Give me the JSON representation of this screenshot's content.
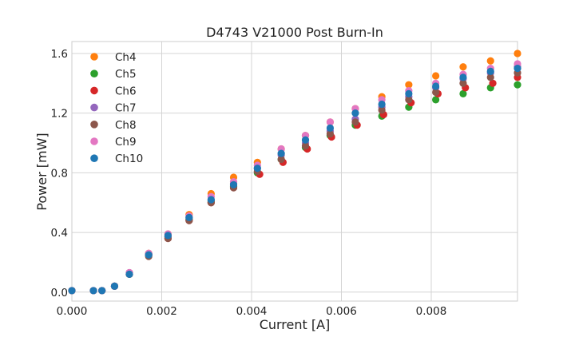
{
  "chart_data": {
    "type": "scatter",
    "title": "D4743 V21000 Post Burn-In",
    "xlabel": "Current [A]",
    "ylabel": "Power [mW]",
    "xlim": [
      0,
      0.00992
    ],
    "ylim": [
      -0.06,
      1.68
    ],
    "x_ticks": [
      0,
      0.002,
      0.004,
      0.006,
      0.008
    ],
    "x_tick_labels": [
      "0.000",
      "0.002",
      "0.004",
      "0.006",
      "0.008"
    ],
    "y_ticks": [
      0.0,
      0.4,
      0.8,
      1.2,
      1.6
    ],
    "y_tick_labels": [
      "0.0",
      "0.4",
      "0.8",
      "1.2",
      "1.6"
    ],
    "grid": true,
    "legend_position": "top-left",
    "series": [
      {
        "name": "Ch4",
        "color": "#ff7f0e",
        "x": [
          0,
          0.00048,
          0.00067,
          0.00095,
          0.00128,
          0.00171,
          0.00214,
          0.00261,
          0.0031,
          0.0036,
          0.00413,
          0.00466,
          0.0052,
          0.00575,
          0.00631,
          0.0069,
          0.0075,
          0.0081,
          0.00871,
          0.00932,
          0.00992
        ],
        "y": [
          0.01,
          0.01,
          0.01,
          0.04,
          0.13,
          0.26,
          0.39,
          0.52,
          0.66,
          0.77,
          0.87,
          0.96,
          1.05,
          1.14,
          1.23,
          1.31,
          1.39,
          1.45,
          1.51,
          1.55,
          1.6
        ]
      },
      {
        "name": "Ch5",
        "color": "#2ca02c",
        "x": [
          0,
          0.00048,
          0.00067,
          0.00095,
          0.00128,
          0.00171,
          0.00214,
          0.00261,
          0.0031,
          0.0036,
          0.00413,
          0.00466,
          0.0052,
          0.00575,
          0.00631,
          0.0069,
          0.0075,
          0.0081,
          0.00871,
          0.00932,
          0.00992
        ],
        "y": [
          0.01,
          0.01,
          0.01,
          0.04,
          0.12,
          0.25,
          0.37,
          0.49,
          0.61,
          0.71,
          0.8,
          0.89,
          0.97,
          1.05,
          1.12,
          1.18,
          1.24,
          1.29,
          1.33,
          1.37,
          1.39
        ]
      },
      {
        "name": "Ch6",
        "color": "#d62728",
        "x": [
          0,
          0.00048,
          0.00067,
          0.00095,
          0.00128,
          0.00171,
          0.00214,
          0.00261,
          0.0031,
          0.0036,
          0.00418,
          0.0047,
          0.00524,
          0.00578,
          0.00635,
          0.00694,
          0.00755,
          0.00815,
          0.00876,
          0.00937,
          0.00992
        ],
        "y": [
          0.01,
          0.01,
          0.01,
          0.04,
          0.12,
          0.25,
          0.36,
          0.48,
          0.6,
          0.7,
          0.79,
          0.87,
          0.96,
          1.04,
          1.12,
          1.19,
          1.27,
          1.33,
          1.37,
          1.4,
          1.44
        ]
      },
      {
        "name": "Ch7",
        "color": "#9467bd",
        "x": [
          0,
          0.00048,
          0.00067,
          0.00095,
          0.00128,
          0.00171,
          0.00214,
          0.00261,
          0.0031,
          0.0036,
          0.00413,
          0.00466,
          0.0052,
          0.00575,
          0.00631,
          0.0069,
          0.0075,
          0.0081,
          0.00871,
          0.00932,
          0.00992
        ],
        "y": [
          0.01,
          0.01,
          0.01,
          0.04,
          0.13,
          0.25,
          0.37,
          0.5,
          0.62,
          0.73,
          0.83,
          0.92,
          1.0,
          1.08,
          1.16,
          1.24,
          1.31,
          1.37,
          1.43,
          1.47,
          1.51
        ]
      },
      {
        "name": "Ch8",
        "color": "#8c564b",
        "x": [
          0,
          0.00048,
          0.00067,
          0.00095,
          0.00128,
          0.00171,
          0.00214,
          0.00261,
          0.0031,
          0.0036,
          0.00413,
          0.00466,
          0.0052,
          0.00575,
          0.00631,
          0.0069,
          0.0075,
          0.0081,
          0.00871,
          0.00932,
          0.00992
        ],
        "y": [
          0.01,
          0.01,
          0.01,
          0.04,
          0.12,
          0.24,
          0.36,
          0.48,
          0.6,
          0.7,
          0.81,
          0.89,
          0.98,
          1.06,
          1.14,
          1.22,
          1.29,
          1.34,
          1.4,
          1.44,
          1.47
        ]
      },
      {
        "name": "Ch9",
        "color": "#e377c2",
        "x": [
          0,
          0.00048,
          0.00067,
          0.00095,
          0.00128,
          0.00171,
          0.00214,
          0.00261,
          0.0031,
          0.0036,
          0.00413,
          0.00466,
          0.0052,
          0.00575,
          0.00631,
          0.0069,
          0.0075,
          0.0081,
          0.00871,
          0.00932,
          0.00992
        ],
        "y": [
          0.01,
          0.01,
          0.01,
          0.04,
          0.13,
          0.26,
          0.39,
          0.51,
          0.64,
          0.74,
          0.85,
          0.96,
          1.05,
          1.14,
          1.23,
          1.29,
          1.35,
          1.4,
          1.46,
          1.5,
          1.53
        ]
      },
      {
        "name": "Ch10",
        "color": "#1f77b4",
        "x": [
          0,
          0.00048,
          0.00067,
          0.00095,
          0.00128,
          0.00171,
          0.00214,
          0.00261,
          0.0031,
          0.0036,
          0.00413,
          0.00466,
          0.0052,
          0.00575,
          0.00631,
          0.0069,
          0.0075,
          0.0081,
          0.00871,
          0.00932,
          0.00992
        ],
        "y": [
          0.01,
          0.01,
          0.01,
          0.04,
          0.12,
          0.25,
          0.38,
          0.5,
          0.62,
          0.72,
          0.83,
          0.93,
          1.02,
          1.1,
          1.2,
          1.26,
          1.33,
          1.38,
          1.44,
          1.48,
          1.5
        ]
      }
    ]
  }
}
